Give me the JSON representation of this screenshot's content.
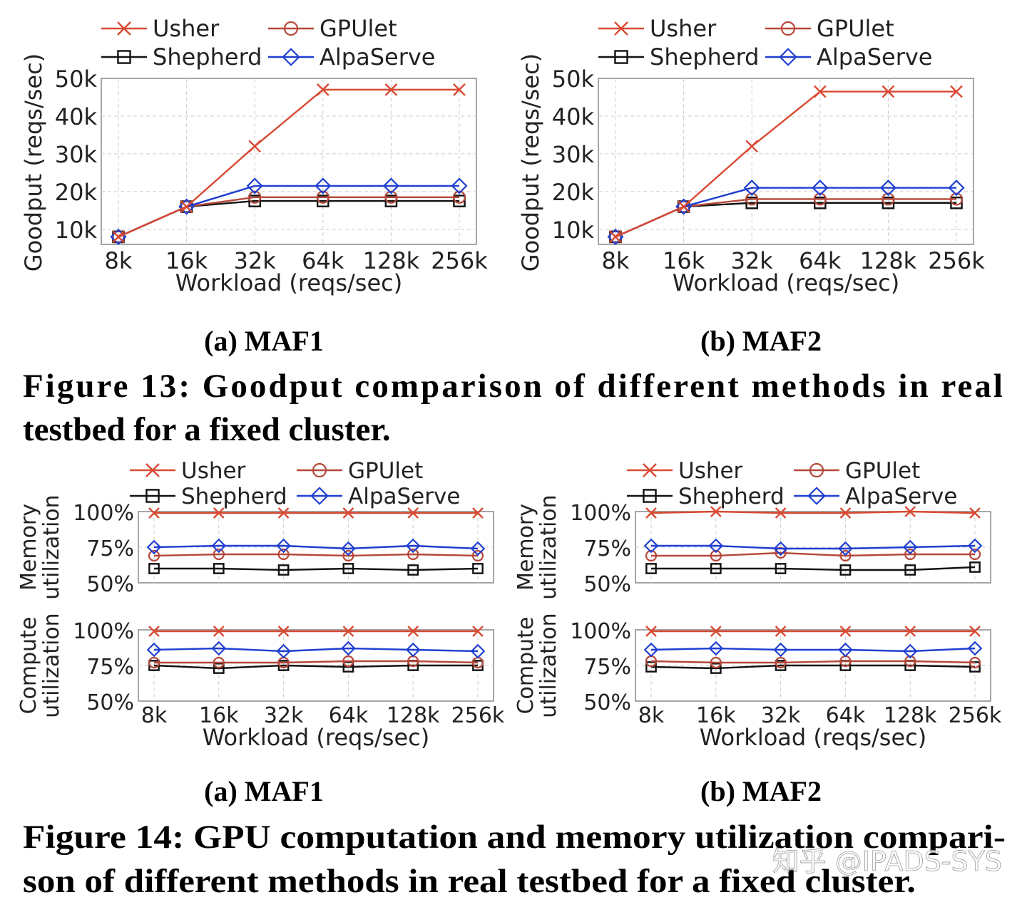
{
  "figure13": {
    "caption": "Figure 13: Goodput comparison of different methods in real",
    "caption_line2": "testbed for a fixed cluster.",
    "subcaptions": [
      "(a) MAF1",
      "(b) MAF2"
    ]
  },
  "figure14": {
    "caption": "Figure 14: GPU computation and memory utilization compari-",
    "caption_line2": "son of different methods in real testbed for a fixed cluster.",
    "subcaptions": [
      "(a) MAF1",
      "(b) MAF2"
    ]
  },
  "watermark": "知乎 @IPADS-SYS",
  "colors": {
    "usher": "#d94a33",
    "gpulet": "#b5483a",
    "shepherd": "#111111",
    "alpaserve": "#1f3fd1",
    "grid": "#cccccc",
    "axis": "#888888"
  },
  "chart_data": [
    {
      "id": "fig13a",
      "type": "line",
      "title": "(a) MAF1",
      "xlabel": "Workload (reqs/sec)",
      "ylabel": "Goodput (reqs/sec)",
      "categories": [
        "8k",
        "16k",
        "32k",
        "64k",
        "128k",
        "256k"
      ],
      "ylim": [
        6000,
        50000
      ],
      "yticks": [
        10000,
        20000,
        30000,
        40000,
        50000
      ],
      "ytick_labels": [
        "10k",
        "20k",
        "30k",
        "40k",
        "50k"
      ],
      "grid": true,
      "legend": [
        "Usher",
        "GPUlet",
        "Shepherd",
        "AlpaServe"
      ],
      "legend_position": "top",
      "series": [
        {
          "name": "Usher",
          "marker": "x",
          "values": [
            8000,
            16000,
            32000,
            47000,
            47000,
            47000
          ]
        },
        {
          "name": "GPUlet",
          "marker": "o",
          "values": [
            8000,
            16000,
            18500,
            18500,
            18500,
            18500
          ]
        },
        {
          "name": "Shepherd",
          "marker": "s",
          "values": [
            8000,
            16000,
            17500,
            17500,
            17500,
            17500
          ]
        },
        {
          "name": "AlpaServe",
          "marker": "d",
          "values": [
            8000,
            16000,
            21500,
            21500,
            21500,
            21500
          ]
        }
      ]
    },
    {
      "id": "fig13b",
      "type": "line",
      "title": "(b) MAF2",
      "xlabel": "Workload (reqs/sec)",
      "ylabel": "Goodput (reqs/sec)",
      "categories": [
        "8k",
        "16k",
        "32k",
        "64k",
        "128k",
        "256k"
      ],
      "ylim": [
        6000,
        50000
      ],
      "yticks": [
        10000,
        20000,
        30000,
        40000,
        50000
      ],
      "ytick_labels": [
        "10k",
        "20k",
        "30k",
        "40k",
        "50k"
      ],
      "grid": true,
      "legend": [
        "Usher",
        "GPUlet",
        "Shepherd",
        "AlpaServe"
      ],
      "legend_position": "top",
      "series": [
        {
          "name": "Usher",
          "marker": "x",
          "values": [
            8000,
            16000,
            32000,
            46500,
            46500,
            46500
          ]
        },
        {
          "name": "GPUlet",
          "marker": "o",
          "values": [
            8000,
            16000,
            18000,
            18000,
            18000,
            18000
          ]
        },
        {
          "name": "Shepherd",
          "marker": "s",
          "values": [
            8000,
            16000,
            17000,
            17000,
            17000,
            17000
          ]
        },
        {
          "name": "AlpaServe",
          "marker": "d",
          "values": [
            8000,
            16000,
            21000,
            21000,
            21000,
            21000
          ]
        }
      ]
    },
    {
      "id": "fig14a",
      "type": "line",
      "title": "(a) MAF1",
      "xlabel": "Workload (reqs/sec)",
      "categories": [
        "8k",
        "16k",
        "32k",
        "64k",
        "128k",
        "256k"
      ],
      "legend": [
        "Usher",
        "GPUlet",
        "Shepherd",
        "AlpaServe"
      ],
      "legend_position": "top",
      "grid": true,
      "panels": [
        {
          "ylabel": [
            "Memory",
            "utilization"
          ],
          "ylim": [
            50,
            100
          ],
          "yticks": [
            50,
            75,
            100
          ],
          "ytick_labels": [
            "50%",
            "75%",
            "100%"
          ],
          "series": [
            {
              "name": "Usher",
              "marker": "x",
              "values": [
                99,
                99,
                99,
                99,
                99,
                99
              ]
            },
            {
              "name": "GPUlet",
              "marker": "o",
              "values": [
                69,
                70,
                70,
                69,
                70,
                69
              ]
            },
            {
              "name": "Shepherd",
              "marker": "s",
              "values": [
                60,
                60,
                59,
                60,
                59,
                60
              ]
            },
            {
              "name": "AlpaServe",
              "marker": "d",
              "values": [
                75,
                76,
                76,
                74,
                76,
                74
              ]
            }
          ]
        },
        {
          "ylabel": [
            "Compute",
            "utilization"
          ],
          "ylim": [
            50,
            100
          ],
          "yticks": [
            50,
            75,
            100
          ],
          "ytick_labels": [
            "50%",
            "75%",
            "100%"
          ],
          "series": [
            {
              "name": "Usher",
              "marker": "x",
              "values": [
                99,
                99,
                99,
                99,
                99,
                99
              ]
            },
            {
              "name": "GPUlet",
              "marker": "o",
              "values": [
                77,
                77,
                77,
                78,
                78,
                77
              ]
            },
            {
              "name": "Shepherd",
              "marker": "s",
              "values": [
                75,
                73,
                75,
                74,
                75,
                75
              ]
            },
            {
              "name": "AlpaServe",
              "marker": "d",
              "values": [
                86,
                87,
                85,
                87,
                86,
                85
              ]
            }
          ]
        }
      ]
    },
    {
      "id": "fig14b",
      "type": "line",
      "title": "(b) MAF2",
      "xlabel": "Workload (reqs/sec)",
      "categories": [
        "8k",
        "16k",
        "32k",
        "64k",
        "128k",
        "256k"
      ],
      "legend": [
        "Usher",
        "GPUlet",
        "Shepherd",
        "AlpaServe"
      ],
      "legend_position": "top",
      "grid": true,
      "panels": [
        {
          "ylabel": [
            "Memory",
            "utilization"
          ],
          "ylim": [
            50,
            100
          ],
          "yticks": [
            50,
            75,
            100
          ],
          "ytick_labels": [
            "50%",
            "75%",
            "100%"
          ],
          "series": [
            {
              "name": "Usher",
              "marker": "x",
              "values": [
                99,
                100,
                99,
                99,
                100,
                99
              ]
            },
            {
              "name": "GPUlet",
              "marker": "o",
              "values": [
                69,
                69,
                71,
                69,
                70,
                70
              ]
            },
            {
              "name": "Shepherd",
              "marker": "s",
              "values": [
                60,
                60,
                60,
                59,
                59,
                61
              ]
            },
            {
              "name": "AlpaServe",
              "marker": "d",
              "values": [
                76,
                76,
                74,
                74,
                75,
                76
              ]
            }
          ]
        },
        {
          "ylabel": [
            "Compute",
            "utilization"
          ],
          "ylim": [
            50,
            100
          ],
          "yticks": [
            50,
            75,
            100
          ],
          "ytick_labels": [
            "50%",
            "75%",
            "100%"
          ],
          "series": [
            {
              "name": "Usher",
              "marker": "x",
              "values": [
                99,
                99,
                99,
                99,
                99,
                99
              ]
            },
            {
              "name": "GPUlet",
              "marker": "o",
              "values": [
                78,
                77,
                77,
                78,
                78,
                77
              ]
            },
            {
              "name": "Shepherd",
              "marker": "s",
              "values": [
                74,
                73,
                75,
                75,
                75,
                74
              ]
            },
            {
              "name": "AlpaServe",
              "marker": "d",
              "values": [
                86,
                87,
                86,
                86,
                85,
                87
              ]
            }
          ]
        }
      ]
    }
  ]
}
